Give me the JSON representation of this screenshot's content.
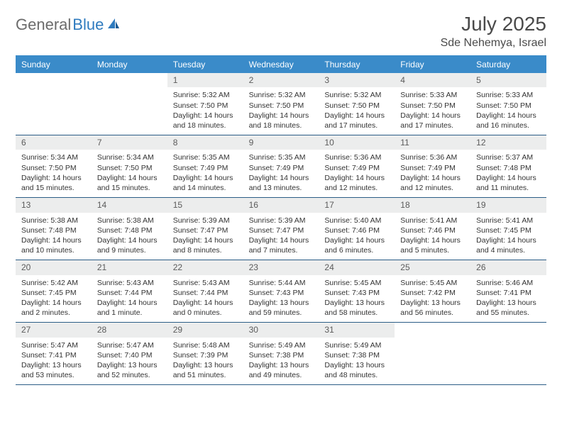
{
  "logo": {
    "part1": "General",
    "part2": "Blue"
  },
  "title": "July 2025",
  "location": "Sde Nehemya, Israel",
  "weekdays": [
    "Sunday",
    "Monday",
    "Tuesday",
    "Wednesday",
    "Thursday",
    "Friday",
    "Saturday"
  ],
  "colors": {
    "header_bg": "#3a8bc9",
    "daynum_bg": "#eceded",
    "border": "#2b5d86",
    "logo_gray": "#6b6b6b",
    "logo_blue": "#2f7bbf"
  },
  "weeks": [
    [
      {
        "empty": true
      },
      {
        "empty": true
      },
      {
        "n": "1",
        "sr": "5:32 AM",
        "ss": "7:50 PM",
        "dl": "14 hours and 18 minutes."
      },
      {
        "n": "2",
        "sr": "5:32 AM",
        "ss": "7:50 PM",
        "dl": "14 hours and 18 minutes."
      },
      {
        "n": "3",
        "sr": "5:32 AM",
        "ss": "7:50 PM",
        "dl": "14 hours and 17 minutes."
      },
      {
        "n": "4",
        "sr": "5:33 AM",
        "ss": "7:50 PM",
        "dl": "14 hours and 17 minutes."
      },
      {
        "n": "5",
        "sr": "5:33 AM",
        "ss": "7:50 PM",
        "dl": "14 hours and 16 minutes."
      }
    ],
    [
      {
        "n": "6",
        "sr": "5:34 AM",
        "ss": "7:50 PM",
        "dl": "14 hours and 15 minutes."
      },
      {
        "n": "7",
        "sr": "5:34 AM",
        "ss": "7:50 PM",
        "dl": "14 hours and 15 minutes."
      },
      {
        "n": "8",
        "sr": "5:35 AM",
        "ss": "7:49 PM",
        "dl": "14 hours and 14 minutes."
      },
      {
        "n": "9",
        "sr": "5:35 AM",
        "ss": "7:49 PM",
        "dl": "14 hours and 13 minutes."
      },
      {
        "n": "10",
        "sr": "5:36 AM",
        "ss": "7:49 PM",
        "dl": "14 hours and 12 minutes."
      },
      {
        "n": "11",
        "sr": "5:36 AM",
        "ss": "7:49 PM",
        "dl": "14 hours and 12 minutes."
      },
      {
        "n": "12",
        "sr": "5:37 AM",
        "ss": "7:48 PM",
        "dl": "14 hours and 11 minutes."
      }
    ],
    [
      {
        "n": "13",
        "sr": "5:38 AM",
        "ss": "7:48 PM",
        "dl": "14 hours and 10 minutes."
      },
      {
        "n": "14",
        "sr": "5:38 AM",
        "ss": "7:48 PM",
        "dl": "14 hours and 9 minutes."
      },
      {
        "n": "15",
        "sr": "5:39 AM",
        "ss": "7:47 PM",
        "dl": "14 hours and 8 minutes."
      },
      {
        "n": "16",
        "sr": "5:39 AM",
        "ss": "7:47 PM",
        "dl": "14 hours and 7 minutes."
      },
      {
        "n": "17",
        "sr": "5:40 AM",
        "ss": "7:46 PM",
        "dl": "14 hours and 6 minutes."
      },
      {
        "n": "18",
        "sr": "5:41 AM",
        "ss": "7:46 PM",
        "dl": "14 hours and 5 minutes."
      },
      {
        "n": "19",
        "sr": "5:41 AM",
        "ss": "7:45 PM",
        "dl": "14 hours and 4 minutes."
      }
    ],
    [
      {
        "n": "20",
        "sr": "5:42 AM",
        "ss": "7:45 PM",
        "dl": "14 hours and 2 minutes."
      },
      {
        "n": "21",
        "sr": "5:43 AM",
        "ss": "7:44 PM",
        "dl": "14 hours and 1 minute."
      },
      {
        "n": "22",
        "sr": "5:43 AM",
        "ss": "7:44 PM",
        "dl": "14 hours and 0 minutes."
      },
      {
        "n": "23",
        "sr": "5:44 AM",
        "ss": "7:43 PM",
        "dl": "13 hours and 59 minutes."
      },
      {
        "n": "24",
        "sr": "5:45 AM",
        "ss": "7:43 PM",
        "dl": "13 hours and 58 minutes."
      },
      {
        "n": "25",
        "sr": "5:45 AM",
        "ss": "7:42 PM",
        "dl": "13 hours and 56 minutes."
      },
      {
        "n": "26",
        "sr": "5:46 AM",
        "ss": "7:41 PM",
        "dl": "13 hours and 55 minutes."
      }
    ],
    [
      {
        "n": "27",
        "sr": "5:47 AM",
        "ss": "7:41 PM",
        "dl": "13 hours and 53 minutes."
      },
      {
        "n": "28",
        "sr": "5:47 AM",
        "ss": "7:40 PM",
        "dl": "13 hours and 52 minutes."
      },
      {
        "n": "29",
        "sr": "5:48 AM",
        "ss": "7:39 PM",
        "dl": "13 hours and 51 minutes."
      },
      {
        "n": "30",
        "sr": "5:49 AM",
        "ss": "7:38 PM",
        "dl": "13 hours and 49 minutes."
      },
      {
        "n": "31",
        "sr": "5:49 AM",
        "ss": "7:38 PM",
        "dl": "13 hours and 48 minutes."
      },
      {
        "empty": true
      },
      {
        "empty": true
      }
    ]
  ]
}
